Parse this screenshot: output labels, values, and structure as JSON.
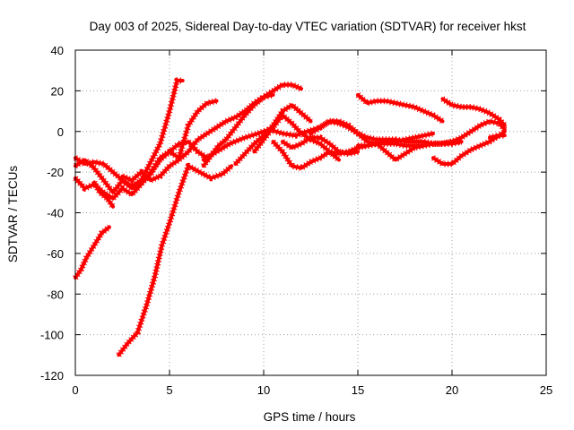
{
  "chart_data": {
    "type": "line",
    "title": "Day 003 of 2025, Sidereal Day-to-day VTEC variation (SDTVAR) for receiver hkst",
    "xlabel": "GPS time / hours",
    "ylabel": "SDTVAR / TECUs",
    "xlim": [
      0,
      25
    ],
    "ylim": [
      -120,
      40
    ],
    "xticks": [
      0,
      5,
      10,
      15,
      20,
      25
    ],
    "yticks": [
      -120,
      -100,
      -80,
      -60,
      -40,
      -20,
      0,
      20,
      40
    ],
    "xtick_labels": [
      "0",
      "5",
      "10",
      "15",
      "20",
      "25"
    ],
    "ytick_labels": [
      "-120",
      "-100",
      "-80",
      "-60",
      "-40",
      "-20",
      "0",
      "20",
      "40"
    ],
    "grid": true,
    "legend": "none",
    "colors": {
      "series": "#ff0000",
      "grid": "#a0a0a0",
      "axis": "#000000"
    },
    "series": [
      {
        "name": "s1",
        "x": [
          0.0,
          0.3,
          0.6,
          1.0,
          1.4,
          1.8
        ],
        "y": [
          -72,
          -68,
          -62,
          -56,
          -50,
          -47
        ]
      },
      {
        "name": "s2",
        "x": [
          2.3,
          2.8,
          3.3,
          3.8,
          4.2,
          4.6,
          5.0,
          5.5,
          6.0,
          6.6,
          7.2,
          7.8,
          8.3
        ],
        "y": [
          -110,
          -104,
          -99,
          -85,
          -72,
          -56,
          -45,
          -30,
          -17,
          -20,
          -23,
          -21,
          -17
        ]
      },
      {
        "name": "s3",
        "x": [
          0.0,
          0.5,
          1.0,
          1.5,
          2.0,
          2.5,
          3.0,
          3.5,
          4.0,
          4.5,
          5.0,
          5.4,
          5.7
        ],
        "y": [
          -13,
          -16,
          -15,
          -16,
          -20,
          -24,
          -27,
          -24,
          -15,
          -6,
          10,
          25,
          25
        ]
      },
      {
        "name": "s4",
        "x": [
          0.0,
          0.5,
          1.0,
          1.5,
          2.0,
          2.5,
          3.0,
          3.5,
          4.0,
          4.5,
          5.0,
          5.5,
          6.0,
          6.5,
          7.0,
          7.5
        ],
        "y": [
          -23,
          -28,
          -26,
          -30,
          -33,
          -28,
          -31,
          -26,
          -20,
          -14,
          -10,
          -13,
          3,
          10,
          14,
          15
        ]
      },
      {
        "name": "s5",
        "x": [
          0.0,
          0.5,
          1.0,
          1.5,
          2.0,
          2.5,
          3.0,
          3.5,
          4.0,
          4.5,
          5.0,
          5.5,
          6.0,
          6.5,
          7.0
        ],
        "y": [
          -17,
          -14,
          -18,
          -24,
          -30,
          -24,
          -28,
          -25,
          -21,
          -13,
          -10,
          -6,
          -5,
          -10,
          -13
        ]
      },
      {
        "name": "s6",
        "x": [
          1.0,
          1.3,
          1.7,
          2.0
        ],
        "y": [
          -25,
          -30,
          -33,
          -37
        ]
      },
      {
        "name": "s7",
        "x": [
          2.5,
          3.0,
          3.5,
          4.0,
          4.5,
          5.0,
          5.5,
          6.0,
          6.5,
          7.0,
          7.5,
          8.0,
          8.5,
          9.0,
          9.5,
          10.0,
          10.5
        ],
        "y": [
          -22,
          -24,
          -20,
          -24,
          -22,
          -17,
          -14,
          -10,
          -4,
          -1,
          2,
          5,
          7,
          10,
          14,
          17,
          18
        ]
      },
      {
        "name": "s8",
        "x": [
          6.8,
          7.2,
          7.6,
          8.0,
          8.5,
          9.0,
          9.5,
          10.0,
          10.5,
          11.0,
          11.5,
          12.0
        ],
        "y": [
          -17,
          -12,
          -7,
          -4,
          2,
          8,
          13,
          17,
          20,
          23,
          23,
          21
        ]
      },
      {
        "name": "s9",
        "x": [
          6.8,
          7.5,
          8.2,
          9.0,
          9.7,
          10.3,
          11.0,
          11.7,
          12.3,
          13.0,
          13.5,
          14.0,
          14.5,
          15.0,
          15.5,
          16.0,
          16.5,
          17.0,
          17.5,
          18.0,
          18.5,
          19.0,
          19.5,
          20.0,
          20.5
        ],
        "y": [
          -14,
          -10,
          -6,
          -3,
          -1,
          1,
          -1,
          -2,
          0,
          2,
          5,
          4,
          2,
          -1,
          -3,
          -4,
          -4,
          -4,
          -5,
          -5,
          -5,
          -6,
          -6,
          -5,
          -5
        ]
      },
      {
        "name": "s10",
        "x": [
          8.5,
          9.0,
          9.5,
          10.0,
          10.5,
          11.0,
          11.5,
          12.0,
          12.5
        ],
        "y": [
          -16,
          -11,
          -6,
          -2,
          3,
          10,
          13,
          9,
          5
        ]
      },
      {
        "name": "s11",
        "x": [
          9.5,
          10.0,
          10.5,
          11.0,
          11.5,
          12.0,
          12.5,
          13.0,
          13.5,
          14.0
        ],
        "y": [
          -10,
          -4,
          2,
          8,
          4,
          -1,
          -4,
          -6,
          -10,
          -14
        ]
      },
      {
        "name": "s12",
        "x": [
          10.5,
          11.0,
          11.5,
          12.0,
          12.5,
          13.0,
          13.5,
          14.0,
          14.5,
          15.0,
          15.5,
          16.0,
          16.5,
          17.0,
          17.5,
          18.0,
          18.5,
          19.0,
          19.5,
          20.0,
          20.5
        ],
        "y": [
          -5,
          -10,
          -17,
          -18,
          -15,
          -13,
          -10,
          -11,
          -10,
          -8,
          -7,
          -6,
          -6,
          -6,
          -7,
          -7,
          -7,
          -6,
          -6,
          -6,
          -5
        ]
      },
      {
        "name": "s13",
        "x": [
          11.0,
          11.5,
          12.0,
          12.5,
          13.0,
          13.5,
          14.0,
          14.5,
          15.0
        ],
        "y": [
          -5,
          -8,
          -6,
          -3,
          -3,
          -6,
          -10,
          -11,
          -10
        ]
      },
      {
        "name": "s14",
        "x": [
          15.0,
          15.5,
          16.0,
          16.5,
          17.0,
          17.5,
          18.0,
          18.5,
          19.0,
          19.5
        ],
        "y": [
          18,
          14,
          15,
          15,
          14,
          13,
          12,
          10,
          8,
          5
        ]
      },
      {
        "name": "s15",
        "x": [
          12.5,
          13.0,
          13.5,
          14.0,
          14.5,
          15.0,
          15.5,
          16.0,
          16.5,
          17.0,
          17.5,
          18.0,
          18.5,
          19.0
        ],
        "y": [
          -1,
          2,
          5,
          5,
          3,
          -1,
          -5,
          -6,
          -5,
          -5,
          -4,
          -3,
          -2,
          -1
        ]
      },
      {
        "name": "s16",
        "x": [
          15.0,
          15.5,
          16.0,
          16.5,
          17.0,
          17.5,
          18.0,
          18.5,
          19.0,
          19.5,
          20.0,
          20.5,
          21.0,
          21.5,
          22.0,
          22.5,
          22.8
        ],
        "y": [
          -7,
          -7,
          -6,
          -10,
          -14,
          -11,
          -8,
          -7,
          -6,
          -6,
          -5,
          -3,
          0,
          3,
          5,
          4,
          1
        ]
      },
      {
        "name": "s17",
        "x": [
          19.5,
          20.0,
          20.5,
          21.0,
          21.5,
          22.0,
          22.5,
          22.8
        ],
        "y": [
          16,
          13,
          12,
          12,
          11,
          9,
          6,
          3
        ]
      },
      {
        "name": "s18",
        "x": [
          19.0,
          19.5,
          20.0,
          20.5,
          21.0,
          21.5,
          22.0,
          22.5,
          22.8
        ],
        "y": [
          -13,
          -16,
          -16,
          -12,
          -9,
          -7,
          -5,
          -2,
          0
        ]
      },
      {
        "name": "s19",
        "x": [
          22.0,
          22.5,
          22.8
        ],
        "y": [
          -3,
          -2,
          -2
        ]
      }
    ]
  }
}
